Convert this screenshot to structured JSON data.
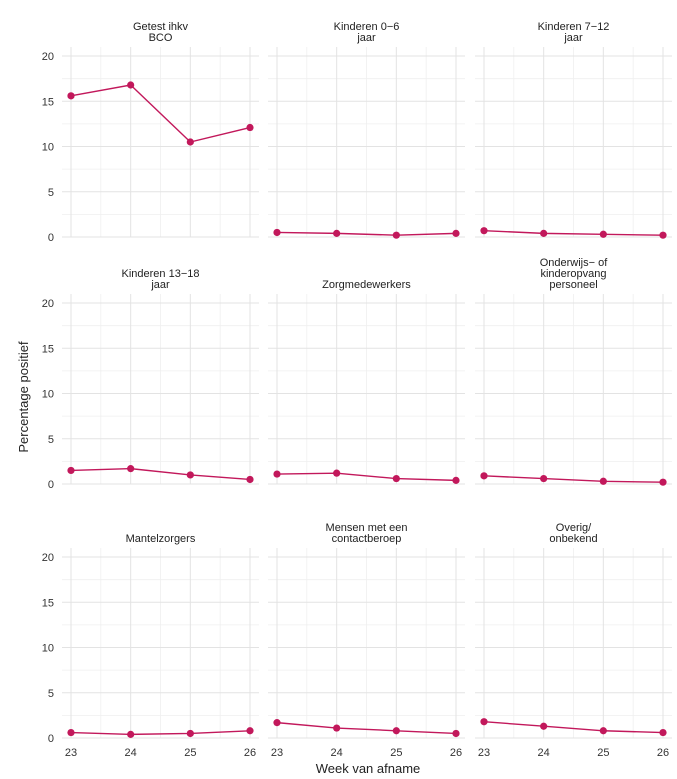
{
  "chart_data": {
    "type": "line",
    "xlabel": "Week van afname",
    "ylabel": "Percentage positief",
    "x": [
      23,
      24,
      25,
      26
    ],
    "ylim": [
      0,
      21
    ],
    "yticks": [
      0,
      5,
      10,
      15,
      20
    ],
    "xticks": [
      23,
      24,
      25,
      26
    ],
    "grid": true,
    "colors": {
      "series": "#c2185b"
    },
    "facets": [
      {
        "title": [
          "Getest ihkv",
          "BCO"
        ],
        "values": [
          15.6,
          16.8,
          10.5,
          12.1
        ]
      },
      {
        "title": [
          "Kinderen 0−6",
          "jaar"
        ],
        "values": [
          0.5,
          0.4,
          0.2,
          0.4
        ]
      },
      {
        "title": [
          "Kinderen 7−12",
          "jaar"
        ],
        "values": [
          0.7,
          0.4,
          0.3,
          0.2
        ]
      },
      {
        "title": [
          "Kinderen 13−18",
          "jaar"
        ],
        "values": [
          1.5,
          1.7,
          1.0,
          0.5
        ]
      },
      {
        "title": [
          "Zorgmedewerkers"
        ],
        "values": [
          1.1,
          1.2,
          0.6,
          0.4
        ]
      },
      {
        "title": [
          "Onderwijs− of",
          "kinderopvang",
          "personeel"
        ],
        "values": [
          0.9,
          0.6,
          0.3,
          0.2
        ]
      },
      {
        "title": [
          "Mantelzorgers"
        ],
        "values": [
          0.6,
          0.4,
          0.5,
          0.8
        ]
      },
      {
        "title": [
          "Mensen met een",
          "contactberoep"
        ],
        "values": [
          1.7,
          1.1,
          0.8,
          0.5
        ]
      },
      {
        "title": [
          "Overig/",
          "onbekend"
        ],
        "values": [
          1.8,
          1.3,
          0.8,
          0.6
        ]
      }
    ]
  }
}
